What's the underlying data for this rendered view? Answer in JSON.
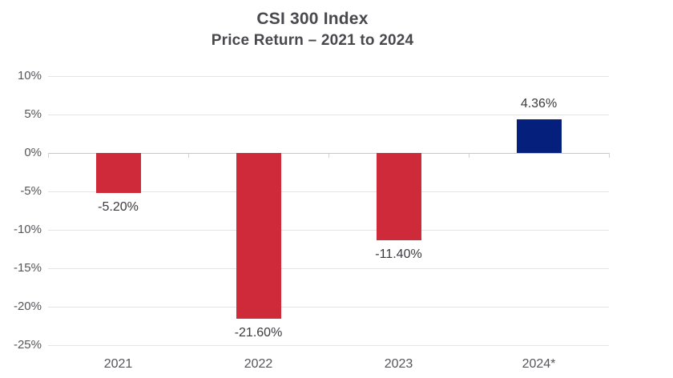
{
  "header": {
    "title": "CSI 300 Index",
    "subtitle": "Price Return – 2021 to 2024"
  },
  "chart_data": {
    "type": "bar",
    "title": "CSI 300 Index",
    "subtitle": "Price Return – 2021 to 2024",
    "categories": [
      "2021",
      "2022",
      "2023",
      "2024*"
    ],
    "values": [
      -5.2,
      -21.6,
      -11.4,
      4.36
    ],
    "data_labels": [
      "-5.20%",
      "-21.60%",
      "-11.40%",
      "4.36%"
    ],
    "xlabel": "",
    "ylabel": "",
    "ylim": [
      -25,
      10
    ],
    "ytick_step": 5,
    "ytick_labels": [
      "10%",
      "5%",
      "0%",
      "-5%",
      "-10%",
      "-15%",
      "-20%",
      "-25%"
    ],
    "grid": true,
    "legend": false,
    "colors": {
      "negative_bar": "#cf2a39",
      "positive_bar": "#04207c",
      "title_text": "#48484d",
      "axis_text": "#55555a",
      "data_label_text": "#3a3a3f",
      "gridline": "#e4e4e4",
      "zero_line": "#c8c8c8",
      "background": "#ffffff"
    }
  }
}
